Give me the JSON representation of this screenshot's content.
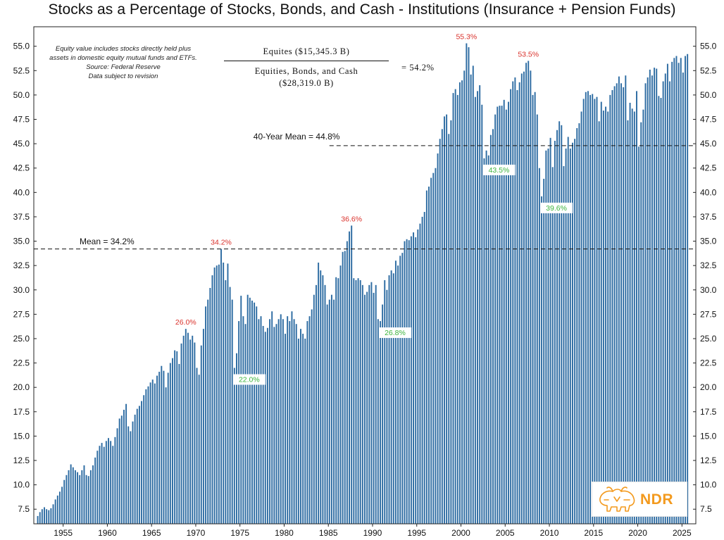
{
  "chart_data": {
    "type": "bar",
    "title": "Stocks as a Percentage of Stocks, Bonds, and Cash - Institutions (Insurance + Pension Funds)",
    "frequency": "quarterly",
    "start": "1952Q1",
    "ylim": [
      6.0,
      57.0
    ],
    "yticks": [
      "7.5",
      "10.0",
      "12.5",
      "15.0",
      "17.5",
      "20.0",
      "22.5",
      "25.0",
      "27.5",
      "30.0",
      "32.5",
      "35.0",
      "37.5",
      "40.0",
      "42.5",
      "45.0",
      "47.5",
      "50.0",
      "52.5",
      "55.0"
    ],
    "xticks": [
      "1955",
      "1960",
      "1965",
      "1970",
      "1975",
      "1980",
      "1985",
      "1990",
      "1995",
      "2000",
      "2005",
      "2010",
      "2015",
      "2020",
      "2025"
    ],
    "grid": false,
    "bar_color": "#2f6da3",
    "annual_values": [
      [
        1952,
        6.8,
        7.2,
        7.5,
        7.7
      ],
      [
        1953,
        7.5,
        7.4,
        7.6,
        8.0
      ],
      [
        1954,
        8.5,
        8.9,
        9.3,
        9.8
      ],
      [
        1955,
        10.5,
        11.0,
        11.5,
        12.1
      ],
      [
        1956,
        11.8,
        11.5,
        11.3,
        11.0
      ],
      [
        1957,
        11.5,
        12.0,
        11.0,
        10.9
      ],
      [
        1958,
        11.5,
        12.0,
        12.8,
        13.5
      ],
      [
        1959,
        14.0,
        14.3,
        13.9,
        14.5
      ],
      [
        1960,
        14.8,
        14.5,
        14.0,
        14.9
      ],
      [
        1961,
        15.8,
        16.8,
        17.1,
        17.7
      ],
      [
        1962,
        18.3,
        16.0,
        15.5,
        16.5
      ],
      [
        1963,
        17.2,
        17.8,
        18.1,
        18.6
      ],
      [
        1964,
        19.2,
        19.8,
        20.1,
        20.5
      ],
      [
        1965,
        20.8,
        20.4,
        21.2,
        21.6
      ],
      [
        1966,
        22.2,
        21.7,
        20.0,
        21.5
      ],
      [
        1967,
        22.5,
        23.0,
        23.8,
        23.7
      ],
      [
        1968,
        22.4,
        24.5,
        25.3,
        26.0
      ],
      [
        1969,
        25.6,
        24.9,
        25.3,
        24.6
      ],
      [
        1970,
        22.0,
        21.3,
        24.3,
        26.0
      ],
      [
        1971,
        28.3,
        29.0,
        30.2,
        31.5
      ],
      [
        1972,
        32.3,
        32.5,
        32.6,
        34.2
      ],
      [
        1973,
        32.8,
        31.0,
        32.7,
        30.3
      ],
      [
        1974,
        29.0,
        22.0,
        23.5,
        26.8
      ],
      [
        1975,
        29.4,
        27.3,
        26.5,
        29.5
      ],
      [
        1976,
        29.2,
        28.9,
        28.7,
        28.3
      ],
      [
        1977,
        27.0,
        27.3,
        26.3,
        25.7
      ],
      [
        1978,
        26.1,
        27.0,
        27.8,
        26.2
      ],
      [
        1979,
        26.5,
        27.0,
        27.5,
        27.0
      ],
      [
        1980,
        25.5,
        27.3,
        26.8,
        27.8
      ],
      [
        1981,
        27.0,
        26.5,
        25.0,
        26.0
      ],
      [
        1982,
        25.5,
        25.0,
        26.8,
        27.3
      ],
      [
        1983,
        28.0,
        29.5,
        30.5,
        32.8
      ],
      [
        1984,
        32.0,
        31.5,
        30.5,
        28.5
      ],
      [
        1985,
        29.0,
        29.5,
        29.0,
        31.3
      ],
      [
        1986,
        31.2,
        32.5,
        33.9,
        34.0
      ],
      [
        1987,
        35.0,
        36.0,
        36.6,
        31.2
      ],
      [
        1988,
        31.0,
        31.2,
        31.0,
        30.5
      ],
      [
        1989,
        29.5,
        29.8,
        30.5,
        30.8
      ],
      [
        1990,
        29.7,
        30.5,
        27.0,
        26.8
      ],
      [
        1991,
        28.5,
        31.0,
        30.0,
        31.5
      ],
      [
        1992,
        32.0,
        31.7,
        33.0,
        32.5
      ],
      [
        1993,
        33.5,
        33.8,
        35.0,
        35.2
      ],
      [
        1994,
        35.1,
        35.5,
        35.9,
        35.4
      ],
      [
        1995,
        36.2,
        36.8,
        37.5,
        38.0
      ],
      [
        1996,
        40.2,
        40.6,
        41.5,
        42.0
      ],
      [
        1997,
        42.5,
        44.0,
        45.5,
        46.5
      ],
      [
        1998,
        47.8,
        48.0,
        46.0,
        47.4
      ],
      [
        1999,
        50.2,
        50.6,
        50.0,
        51.3
      ],
      [
        2000,
        51.5,
        52.5,
        55.3,
        54.9
      ],
      [
        2001,
        52.1,
        53.0,
        49.8,
        50.4
      ],
      [
        2002,
        51.0,
        49.0,
        43.5,
        44.3
      ],
      [
        2003,
        43.8,
        45.9,
        46.5,
        48.0
      ],
      [
        2004,
        48.8,
        48.9,
        48.9,
        49.5
      ],
      [
        2005,
        48.5,
        49.3,
        50.6,
        51.4
      ],
      [
        2006,
        51.8,
        50.5,
        51.3,
        52.2
      ],
      [
        2007,
        52.4,
        53.3,
        53.5,
        52.5
      ],
      [
        2008,
        50.0,
        50.3,
        48.0,
        42.5
      ],
      [
        2009,
        39.6,
        41.4,
        44.3,
        44.5
      ],
      [
        2010,
        45.6,
        42.6,
        45.3,
        46.4
      ],
      [
        2011,
        47.3,
        46.9,
        42.7,
        44.5
      ],
      [
        2012,
        45.7,
        44.5,
        45.1,
        45.5
      ],
      [
        2013,
        46.6,
        47.1,
        48.3,
        49.6
      ],
      [
        2014,
        50.3,
        50.4,
        50.0,
        50.1
      ],
      [
        2015,
        49.6,
        49.8,
        47.3,
        49.3
      ],
      [
        2016,
        48.4,
        48.8,
        48.3,
        50.0
      ],
      [
        2017,
        50.5,
        50.9,
        51.2,
        51.9
      ],
      [
        2018,
        51.2,
        50.8,
        52.0,
        47.4
      ],
      [
        2019,
        49.2,
        48.6,
        48.3,
        50.4
      ],
      [
        2020,
        44.7,
        47.2,
        48.5,
        51.2
      ],
      [
        2021,
        51.8,
        52.6,
        52.0,
        52.8
      ],
      [
        2022,
        52.7,
        49.9,
        49.7,
        51.4
      ],
      [
        2023,
        52.2,
        53.2,
        51.4,
        53.4
      ],
      [
        2024,
        53.8,
        54.0,
        53.3,
        53.8
      ],
      [
        2025,
        52.3,
        54.0,
        54.2
      ]
    ],
    "mean": {
      "value": 34.2,
      "label": "Mean = 34.2%"
    },
    "mean40": {
      "value": 44.8,
      "label": "40-Year Mean = 44.8%",
      "start": "1985Q1"
    },
    "annotations_high": [
      {
        "text": "26.0%",
        "at": "1968Q4"
      },
      {
        "text": "34.2%",
        "at": "1972Q4"
      },
      {
        "text": "36.6%",
        "at": "1987Q3"
      },
      {
        "text": "55.3%",
        "at": "2000Q3"
      },
      {
        "text": "53.5%",
        "at": "2007Q3"
      }
    ],
    "annotations_low": [
      {
        "text": "22.0%",
        "at": "1974Q2"
      },
      {
        "text": "26.8%",
        "at": "1990Q4"
      },
      {
        "text": "43.5%",
        "at": "2002Q3"
      },
      {
        "text": "39.6%",
        "at": "2009Q1"
      }
    ],
    "high_color": "#d9302a",
    "low_color": "#3cb43c"
  },
  "note": {
    "lines": [
      "Equity value includes stocks directly held plus",
      "assets in domestic equity mutual funds and ETFs.",
      "Source: Federal Reserve",
      "Data subject to revision"
    ]
  },
  "formula": {
    "numerator": "Equites ($15,345.3 B)",
    "denominator_line1": "Equities, Bonds, and Cash",
    "denominator_line2": "($28,319.0 B)",
    "result": "=  54.2%"
  },
  "logo": {
    "text": "NDR",
    "color": "#f39a1e",
    "icon": "bull-bear-icon"
  }
}
